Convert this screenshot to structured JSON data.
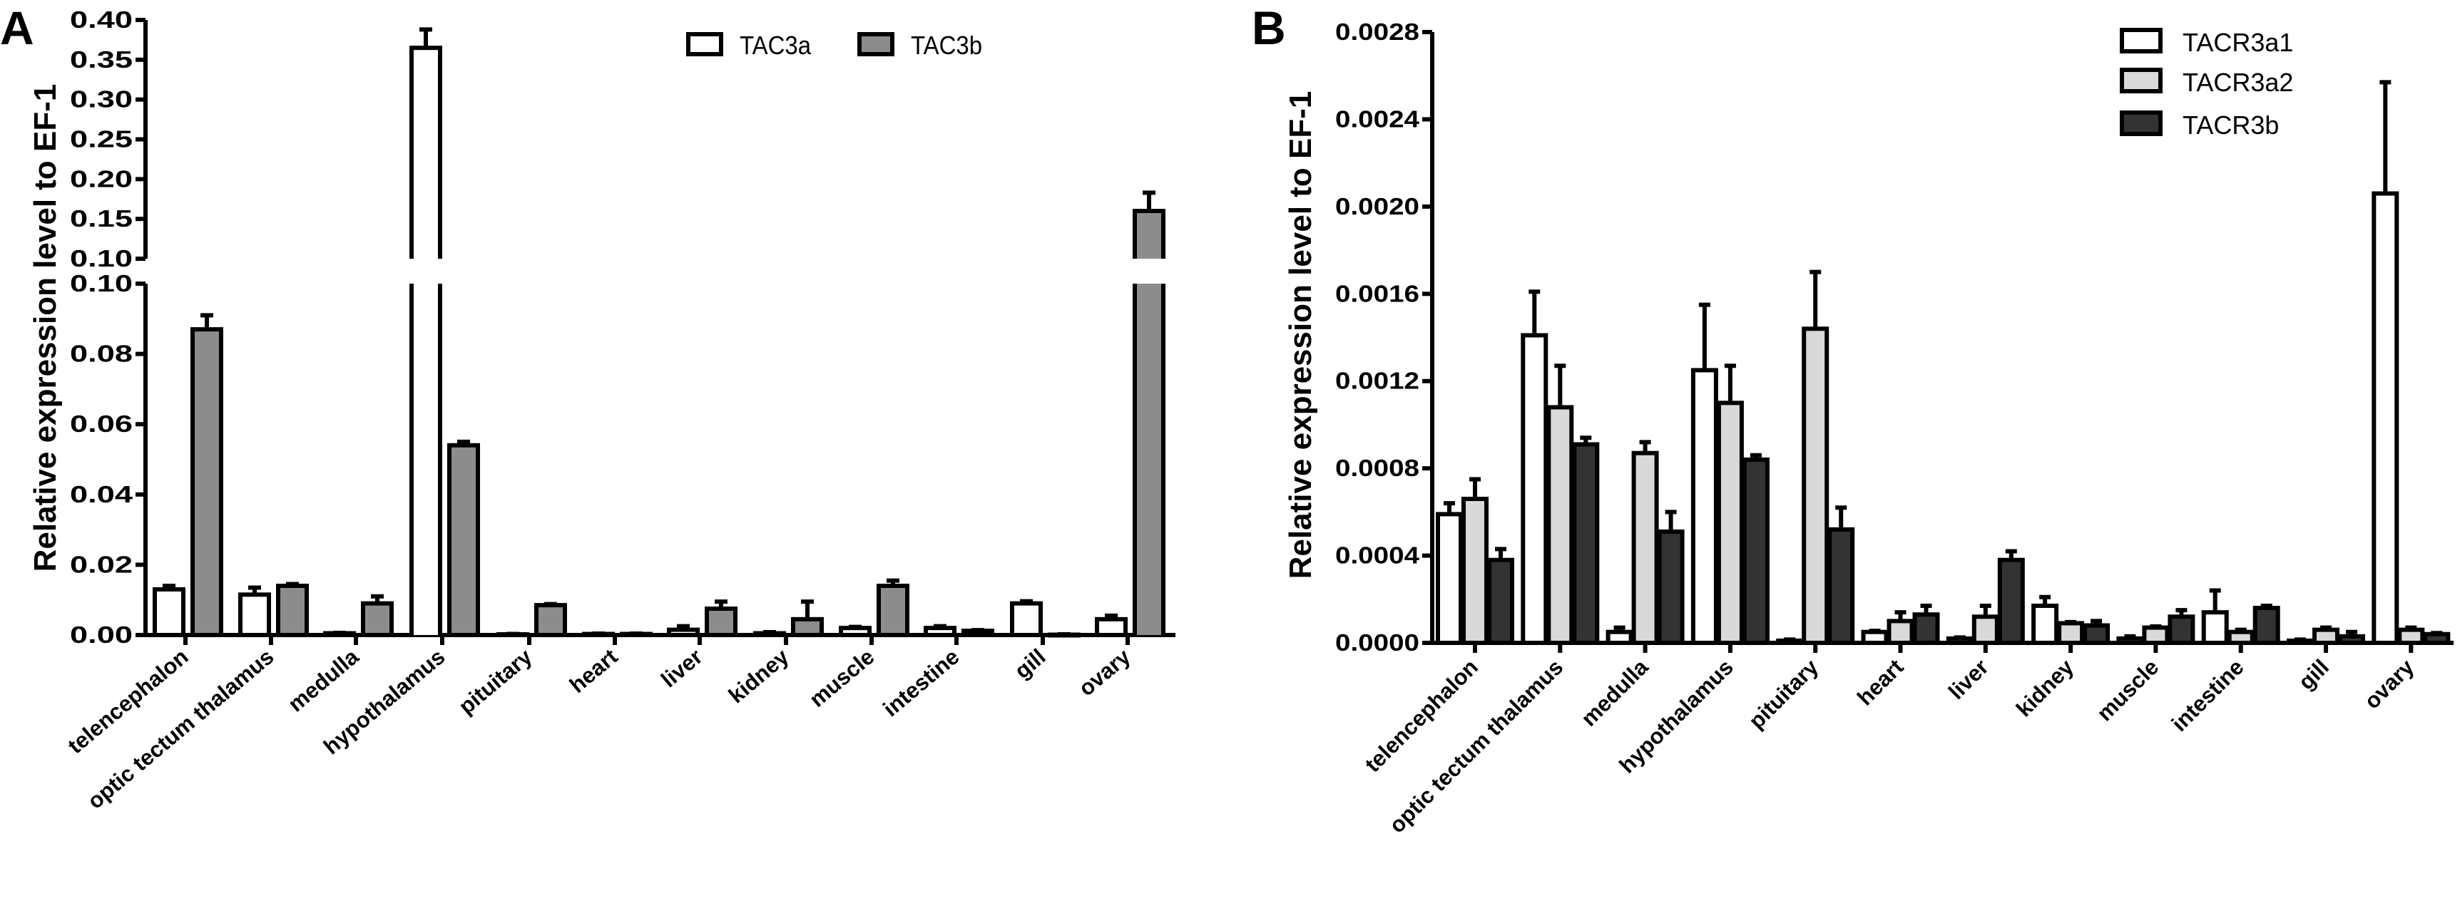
{
  "chart_data": [
    {
      "type": "bar",
      "panel_label": "A",
      "title": "",
      "xlabel": "",
      "ylabel": "Relative expression level to EF-1",
      "categories": [
        "telencephalon",
        "optic tectum thalamus",
        "medulla",
        "hypothalamus",
        "pituitary",
        "heart",
        "liver",
        "kidney",
        "muscle",
        "intestine",
        "gill",
        "ovary"
      ],
      "broken_axis": {
        "lower": [
          0,
          0.1
        ],
        "upper": [
          0.1,
          0.4
        ]
      },
      "yticks_lower": [
        "0.00",
        "0.02",
        "0.04",
        "0.06",
        "0.08",
        "0.10"
      ],
      "yticks_upper": [
        "0.10",
        "0.15",
        "0.20",
        "0.25",
        "0.30",
        "0.35",
        "0.40"
      ],
      "legend_position": "top-right",
      "series": [
        {
          "name": "TAC3a",
          "color": "#ffffff",
          "values": [
            0.013,
            0.0115,
            0.0005,
            0.365,
            0.0002,
            0.0003,
            0.0015,
            0.0005,
            0.002,
            0.002,
            0.009,
            0.0045
          ],
          "errors": [
            0.001,
            0.002,
            0.0001,
            0.023,
            0.0001,
            0.0001,
            0.001,
            0.0003,
            0.0003,
            0.0005,
            0.0006,
            0.001
          ]
        },
        {
          "name": "TAC3b",
          "color": "#8c8c8c",
          "values": [
            0.087,
            0.014,
            0.009,
            0.054,
            0.0085,
            0.0003,
            0.0075,
            0.0045,
            0.014,
            0.0012,
            0.0001,
            0.16
          ],
          "errors": [
            0.004,
            0.0005,
            0.002,
            0.001,
            0.0003,
            0.0001,
            0.002,
            0.005,
            0.0015,
            0.0002,
            0.0001,
            0.023
          ]
        }
      ]
    },
    {
      "type": "bar",
      "panel_label": "B",
      "title": "",
      "xlabel": "",
      "ylabel": "Relative expression level to EF-1",
      "categories": [
        "telencephalon",
        "optic tectum thalamus",
        "medulla",
        "hypothalamus",
        "pituitary",
        "heart",
        "liver",
        "kidney",
        "muscle",
        "intestine",
        "gill",
        "ovary"
      ],
      "ylim": [
        0,
        0.0028
      ],
      "yticks": [
        "0.0000",
        "0.0004",
        "0.0008",
        "0.0012",
        "0.0016",
        "0.0020",
        "0.0024",
        "0.0028"
      ],
      "legend_position": "top-right",
      "series": [
        {
          "name": "TACR3a1",
          "color": "#ffffff",
          "values": [
            0.00059,
            0.00141,
            5e-05,
            0.00125,
            1e-05,
            5e-05,
            2e-05,
            0.00017,
            2e-05,
            0.00014,
            1e-05,
            0.00206
          ],
          "errors": [
            5e-05,
            0.0002,
            2e-05,
            0.0003,
            5e-06,
            5e-06,
            5e-06,
            4e-05,
            1e-05,
            0.0001,
            5e-06,
            0.00051
          ]
        },
        {
          "name": "TACR3a2",
          "color": "#d9d9d9",
          "values": [
            0.00066,
            0.00108,
            0.00087,
            0.0011,
            0.00144,
            0.0001,
            0.00012,
            9e-05,
            7e-05,
            5e-05,
            6e-05,
            6e-05
          ],
          "errors": [
            9e-05,
            0.00019,
            5e-05,
            0.00017,
            0.00026,
            4e-05,
            5e-05,
            5e-06,
            5e-06,
            1e-05,
            1e-05,
            1e-05
          ]
        },
        {
          "name": "TACR3b",
          "color": "#333333",
          "values": [
            0.00038,
            0.00091,
            0.00051,
            0.00084,
            0.00052,
            0.00013,
            0.00038,
            8e-05,
            0.00012,
            0.00016,
            3e-05,
            4e-05
          ],
          "errors": [
            5e-05,
            3e-05,
            9e-05,
            2e-05,
            0.0001,
            4e-05,
            4e-05,
            2e-05,
            3e-05,
            1e-05,
            2e-05,
            5e-06
          ]
        }
      ]
    }
  ]
}
